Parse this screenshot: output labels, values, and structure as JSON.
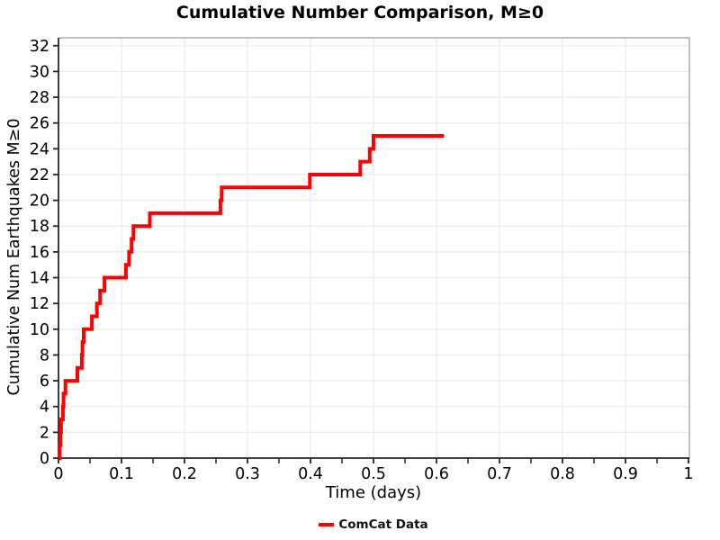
{
  "chart_data": {
    "type": "line",
    "subtype": "cumulative-step",
    "title": "Cumulative Number Comparison, M≥0",
    "xlabel": "Time (days)",
    "ylabel": "Cumulative Num Earthquakes M≥0",
    "xlim": [
      0,
      1
    ],
    "ylim": [
      0,
      32
    ],
    "grid": true,
    "legend_position": "bottom-center",
    "legend": [
      {
        "label": "ComCat Data",
        "color": "#ff0000"
      }
    ],
    "x_ticks": [
      0,
      0.1,
      0.2,
      0.3,
      0.4,
      0.5,
      0.6,
      0.7,
      0.8,
      0.9,
      1
    ],
    "x_tick_labels": [
      "0",
      "0.1",
      "0.2",
      "0.3",
      "0.4",
      "0.5",
      "0.6",
      "0.7",
      "0.8",
      "0.9",
      "1"
    ],
    "x_minor_tick_step": 0.05,
    "y_ticks": [
      0,
      2,
      4,
      6,
      8,
      10,
      12,
      14,
      16,
      18,
      20,
      22,
      24,
      26,
      28,
      30,
      32
    ],
    "y_tick_labels": [
      "0",
      "2",
      "4",
      "6",
      "8",
      "10",
      "12",
      "14",
      "16",
      "18",
      "20",
      "22",
      "24",
      "26",
      "28",
      "30",
      "32"
    ],
    "series": [
      {
        "name": "ComCat Data",
        "color": "#ff0000",
        "line_width": 4,
        "step_mode": "post",
        "event_times": [
          0.002,
          0.003,
          0.004,
          0.007,
          0.008,
          0.011,
          0.03,
          0.037,
          0.038,
          0.04,
          0.053,
          0.061,
          0.066,
          0.073,
          0.107,
          0.112,
          0.116,
          0.119,
          0.145,
          0.257,
          0.259,
          0.399,
          0.479,
          0.494,
          0.5
        ],
        "cumulative_counts": [
          1,
          2,
          3,
          4,
          5,
          6,
          7,
          8,
          9,
          10,
          11,
          12,
          13,
          14,
          15,
          16,
          17,
          18,
          19,
          20,
          21,
          22,
          23,
          24,
          25
        ],
        "start": [
          0,
          0
        ],
        "end_time": 0.612,
        "final_count": 25
      }
    ],
    "colors": {
      "line": "#ff0000",
      "grid": "#ececec",
      "axis_dark": "#262626",
      "border_gray": "#ababab",
      "text": "#000000"
    }
  }
}
